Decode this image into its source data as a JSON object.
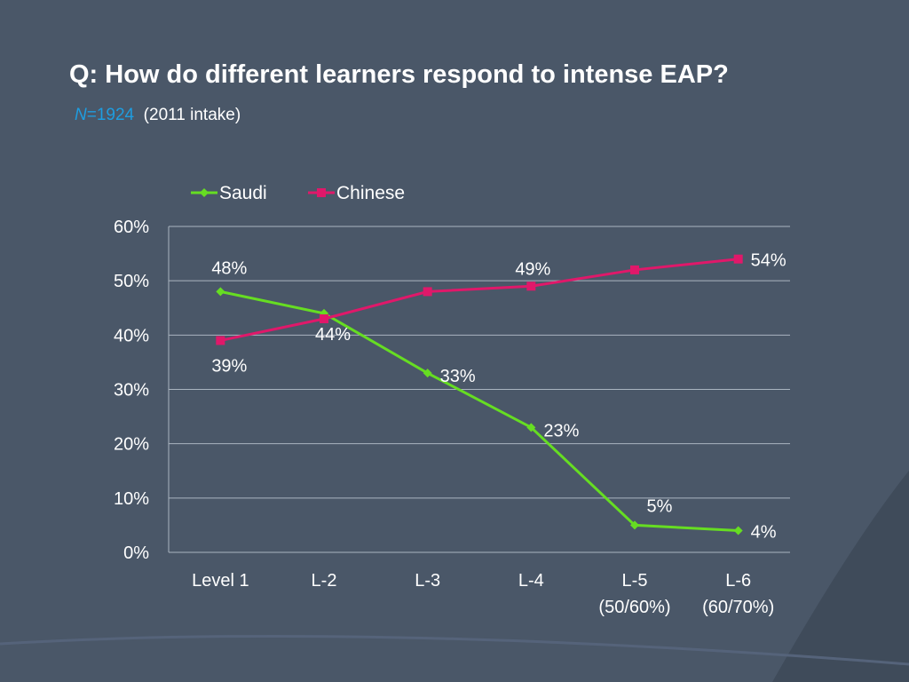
{
  "slide": {
    "title": "Q: How do different learners respond to intense EAP?",
    "n_label": "N",
    "n_value": "=1924",
    "intake": "(2011 intake)"
  },
  "colors": {
    "background": "#3f4b5a",
    "saudi": "#66dd22",
    "chinese": "#e0186a",
    "text": "#ffffff",
    "accent": "#1e9de0"
  },
  "chart_data": {
    "type": "line",
    "categories": [
      [
        "Level 1"
      ],
      [
        "L-2"
      ],
      [
        "L-3"
      ],
      [
        "L-4"
      ],
      [
        "L-5",
        "(50/60%)"
      ],
      [
        "L-6",
        "(60/70%)"
      ]
    ],
    "series": [
      {
        "name": "Saudi",
        "values": [
          48,
          44,
          33,
          23,
          5,
          4
        ],
        "data_labels": [
          "48%",
          "44%",
          "33%",
          "23%",
          "5%",
          "4%"
        ],
        "marker": "diamond"
      },
      {
        "name": "Chinese",
        "values": [
          39,
          43,
          48,
          49,
          52,
          54
        ],
        "data_labels": [
          "39%",
          "",
          "",
          "49%",
          "",
          "54%"
        ],
        "marker": "square"
      }
    ],
    "yticks": [
      "0%",
      "10%",
      "20%",
      "30%",
      "40%",
      "50%",
      "60%"
    ],
    "ylim": [
      0,
      60
    ],
    "grid": true,
    "legend_position": "top"
  }
}
